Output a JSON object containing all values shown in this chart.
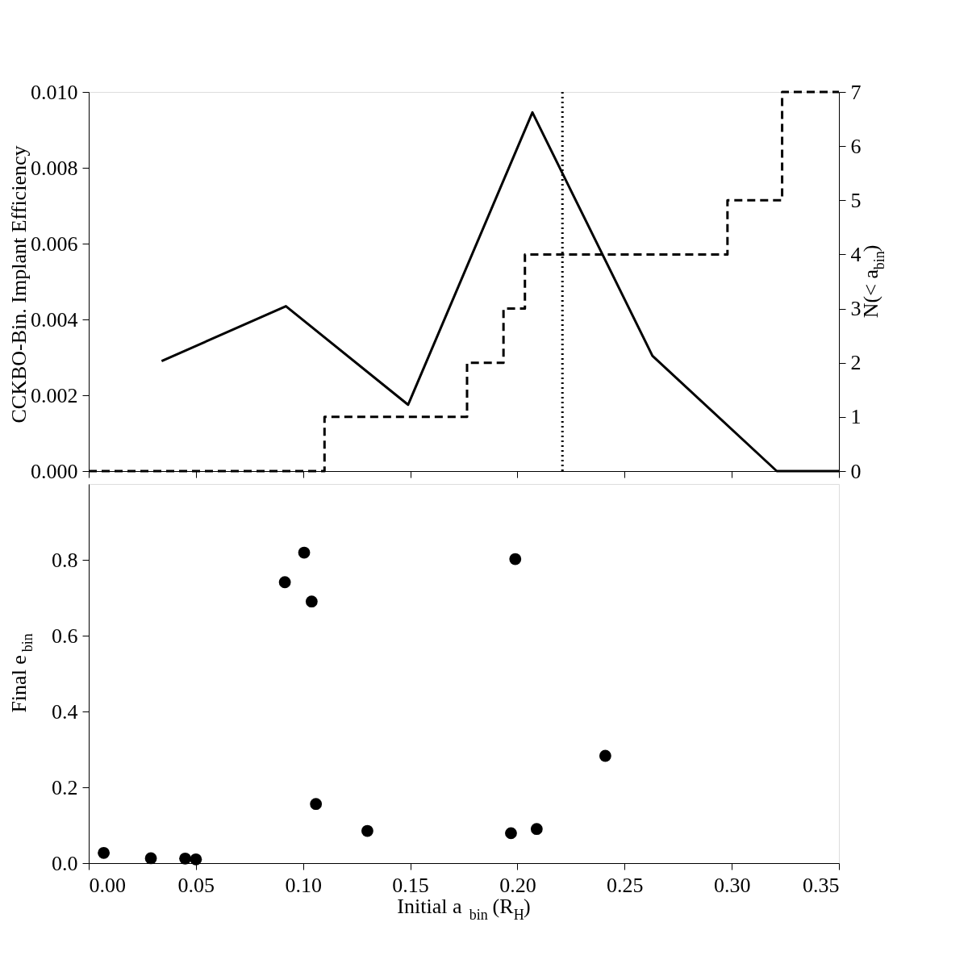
{
  "chart_data": [
    {
      "type": "line",
      "ylabel": "CCKBO-Bin. Implant Efficiency",
      "y2label": "N(< a$_{bin}$)",
      "xlim": [
        0,
        0.35
      ],
      "xticks": [
        0,
        0.05,
        0.1,
        0.15,
        0.2,
        0.25,
        0.3,
        0.35
      ],
      "ylim": [
        0,
        0.01
      ],
      "yticks": [
        {
          "value": 0,
          "label": "0.000"
        },
        {
          "value": 0.002,
          "label": "0.002"
        },
        {
          "value": 0.004,
          "label": "0.004"
        },
        {
          "value": 0.006,
          "label": "0.006"
        },
        {
          "value": 0.008,
          "label": "0.008"
        },
        {
          "value": 0.01,
          "label": "0.010"
        }
      ],
      "y2lim": [
        0,
        7
      ],
      "y2ticks": [
        0,
        1,
        2,
        3,
        4,
        5,
        6,
        7
      ],
      "tick_labels": "y",
      "grid": false,
      "series": [
        {
          "type": "line",
          "color": "#000000",
          "line_style": "solid",
          "x": [
            0.034,
            0.092,
            0.149,
            0.207,
            0.263,
            0.321,
            0.35
          ],
          "values": [
            0.0029,
            0.00435,
            0.00175,
            0.00946,
            0.00304,
            0,
            0
          ]
        },
        {
          "type": "step",
          "axis": "y2",
          "color": "#000000",
          "line_style": "dashed",
          "x": [
            0,
            0.11,
            0.1765,
            0.1935,
            0.2035,
            0.298,
            0.3235,
            0.35
          ],
          "values": [
            0,
            1,
            2,
            3,
            4,
            5,
            7,
            7
          ]
        }
      ],
      "ref_lines": [
        {
          "axis": "x",
          "value": 0.221,
          "color": "#000000",
          "line_style": "dotted"
        }
      ]
    },
    {
      "type": "scatter",
      "xlabel": "Initial a$_{bin}$ (R$_{H}$)",
      "ylabel": "Final e$_{bin}$",
      "xlim": [
        0,
        0.35
      ],
      "xticks": [
        {
          "value": 0,
          "label": "0.00"
        },
        {
          "value": 0.05,
          "label": "0.05"
        },
        {
          "value": 0.1,
          "label": "0.10"
        },
        {
          "value": 0.15,
          "label": "0.15"
        },
        {
          "value": 0.2,
          "label": "0.20"
        },
        {
          "value": 0.25,
          "label": "0.25"
        },
        {
          "value": 0.3,
          "label": "0.30"
        },
        {
          "value": 0.35,
          "label": "0.35"
        }
      ],
      "ylim": [
        0,
        1
      ],
      "yticks": [
        {
          "value": 0,
          "label": "0.0"
        },
        {
          "value": 0.2,
          "label": "0.2"
        },
        {
          "value": 0.4,
          "label": "0.4"
        },
        {
          "value": 0.6,
          "label": "0.6"
        },
        {
          "value": 0.8,
          "label": "0.8"
        }
      ],
      "grid": false,
      "marker": "circle",
      "series": [
        {
          "color": "#000000",
          "x": [
            0.007,
            0.029,
            0.045,
            0.05,
            0.0915,
            0.1005,
            0.104,
            0.106,
            0.13,
            0.197,
            0.199,
            0.209,
            0.241
          ],
          "values": [
            0.027,
            0.013,
            0.012,
            0.01,
            0.741,
            0.819,
            0.69,
            0.156,
            0.085,
            0.079,
            0.802,
            0.09,
            0.283
          ]
        }
      ]
    }
  ]
}
